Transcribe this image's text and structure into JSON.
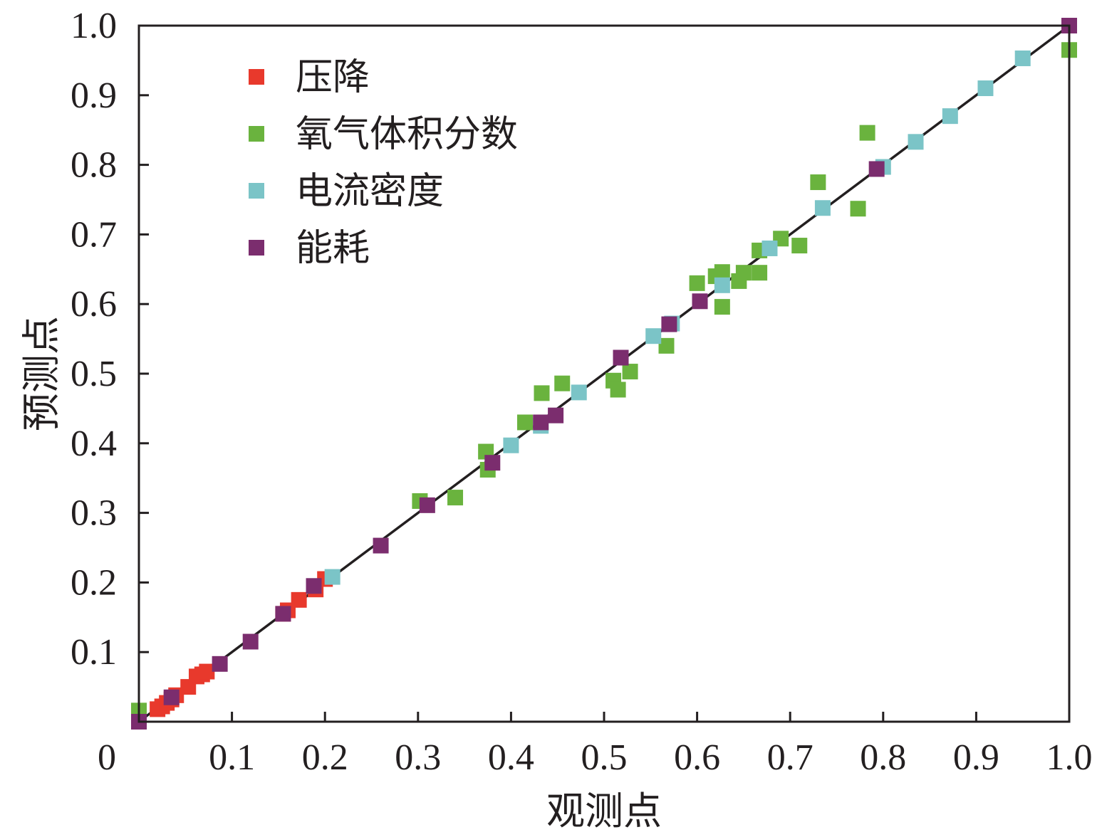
{
  "chart_data": {
    "type": "scatter",
    "xlabel": "观测点",
    "ylabel": "预测点",
    "xlim": [
      0,
      1.0
    ],
    "ylim": [
      0,
      1.0
    ],
    "grid": false,
    "legend_position": "top-left",
    "reference_line": {
      "from": [
        0,
        0
      ],
      "to": [
        1.0,
        1.0
      ],
      "color": "#231f20"
    },
    "x_ticks": [
      "0",
      "0.1",
      "0.2",
      "0.3",
      "0.4",
      "0.5",
      "0.6",
      "0.7",
      "0.8",
      "0.9",
      "1.0"
    ],
    "y_ticks": [
      "0.1",
      "0.2",
      "0.3",
      "0.4",
      "0.5",
      "0.6",
      "0.7",
      "0.8",
      "0.9",
      "1.0"
    ],
    "series": [
      {
        "name": "压降",
        "color": "#e8392c",
        "points": [
          [
            0.0,
            0.0
          ],
          [
            0.02,
            0.018
          ],
          [
            0.025,
            0.022
          ],
          [
            0.03,
            0.027
          ],
          [
            0.035,
            0.032
          ],
          [
            0.04,
            0.038
          ],
          [
            0.053,
            0.05
          ],
          [
            0.062,
            0.065
          ],
          [
            0.068,
            0.068
          ],
          [
            0.073,
            0.072
          ],
          [
            0.155,
            0.155
          ],
          [
            0.16,
            0.16
          ],
          [
            0.172,
            0.175
          ],
          [
            0.19,
            0.19
          ],
          [
            0.2,
            0.205
          ]
        ]
      },
      {
        "name": "氧气体积分数",
        "color": "#6ab33e",
        "points": [
          [
            0.0,
            0.016
          ],
          [
            0.302,
            0.317
          ],
          [
            0.34,
            0.322
          ],
          [
            0.373,
            0.388
          ],
          [
            0.375,
            0.362
          ],
          [
            0.415,
            0.43
          ],
          [
            0.433,
            0.472
          ],
          [
            0.455,
            0.486
          ],
          [
            0.51,
            0.49
          ],
          [
            0.515,
            0.477
          ],
          [
            0.528,
            0.503
          ],
          [
            0.567,
            0.54
          ],
          [
            0.6,
            0.63
          ],
          [
            0.62,
            0.64
          ],
          [
            0.627,
            0.646
          ],
          [
            0.627,
            0.596
          ],
          [
            0.645,
            0.633
          ],
          [
            0.65,
            0.645
          ],
          [
            0.667,
            0.645
          ],
          [
            0.667,
            0.677
          ],
          [
            0.69,
            0.694
          ],
          [
            0.71,
            0.684
          ],
          [
            0.73,
            0.775
          ],
          [
            0.773,
            0.737
          ],
          [
            0.783,
            0.846
          ],
          [
            1.0,
            0.965
          ]
        ]
      },
      {
        "name": "电流密度",
        "color": "#7bc4c7",
        "points": [
          [
            0.208,
            0.208
          ],
          [
            0.4,
            0.397
          ],
          [
            0.432,
            0.425
          ],
          [
            0.473,
            0.473
          ],
          [
            0.553,
            0.554
          ],
          [
            0.573,
            0.572
          ],
          [
            0.627,
            0.627
          ],
          [
            0.678,
            0.68
          ],
          [
            0.735,
            0.738
          ],
          [
            0.8,
            0.797
          ],
          [
            0.835,
            0.833
          ],
          [
            0.872,
            0.87
          ],
          [
            0.91,
            0.91
          ],
          [
            0.95,
            0.953
          ]
        ]
      },
      {
        "name": "能耗",
        "color": "#7b2d6e",
        "points": [
          [
            0.0,
            0.0
          ],
          [
            0.035,
            0.035
          ],
          [
            0.087,
            0.083
          ],
          [
            0.12,
            0.115
          ],
          [
            0.155,
            0.155
          ],
          [
            0.188,
            0.195
          ],
          [
            0.26,
            0.253
          ],
          [
            0.31,
            0.311
          ],
          [
            0.38,
            0.372
          ],
          [
            0.432,
            0.43
          ],
          [
            0.448,
            0.44
          ],
          [
            0.518,
            0.523
          ],
          [
            0.57,
            0.571
          ],
          [
            0.603,
            0.604
          ],
          [
            0.793,
            0.794
          ],
          [
            1.0,
            1.0
          ]
        ]
      }
    ]
  }
}
